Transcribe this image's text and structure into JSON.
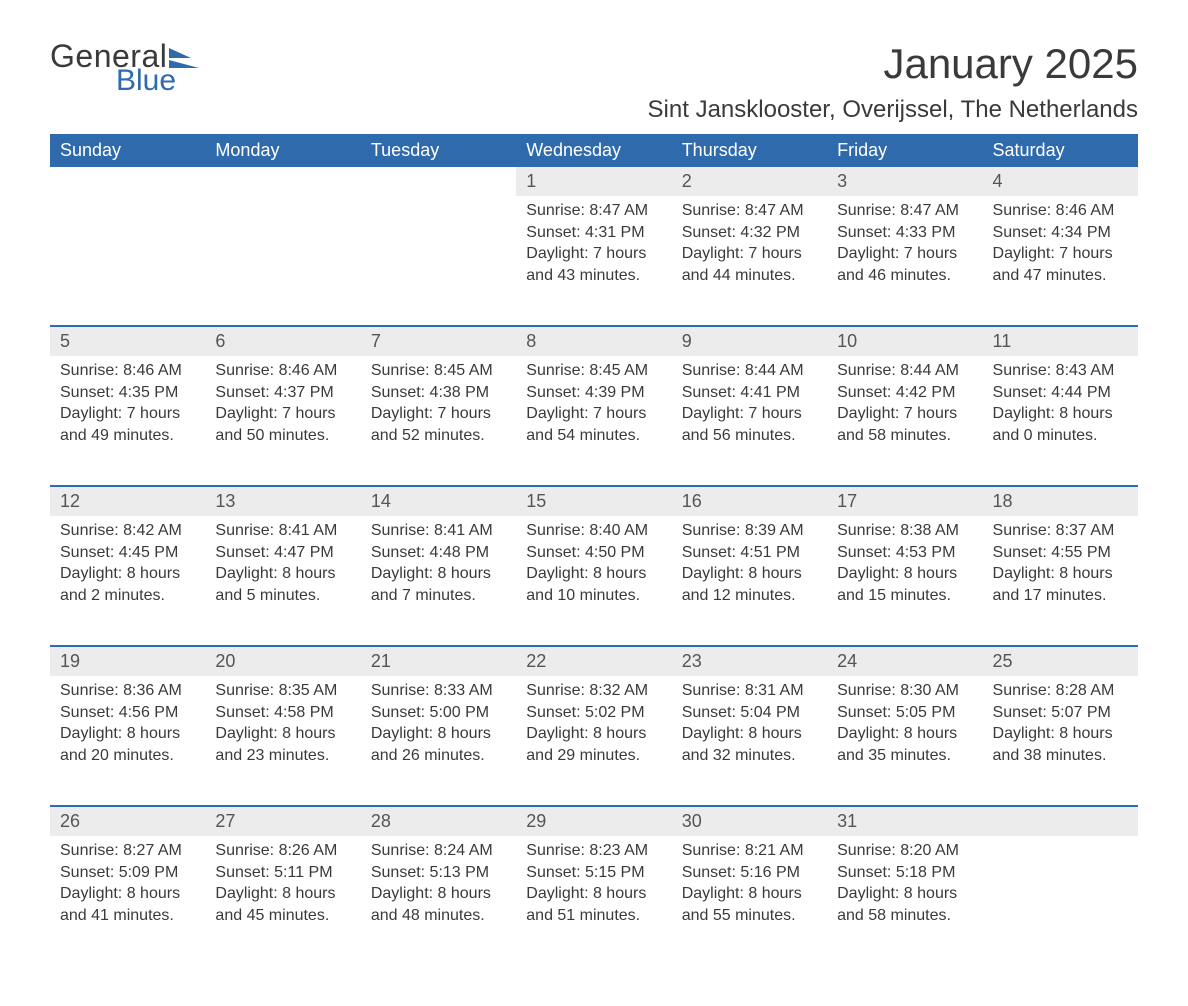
{
  "logo": {
    "word1": "General",
    "word2": "Blue",
    "accent_color": "#2f6aad"
  },
  "title": "January 2025",
  "location": "Sint Jansklooster, Overijssel, The Netherlands",
  "calendar": {
    "header_bg": "#2f6aad",
    "header_fg": "#ffffff",
    "daynum_bg": "#ececec",
    "rule_color": "#2f6aad",
    "text_color": "#3a3a3a",
    "background_color": "#ffffff",
    "header_fontsize": 18,
    "daynum_fontsize": 18,
    "body_fontsize": 16,
    "days": [
      "Sunday",
      "Monday",
      "Tuesday",
      "Wednesday",
      "Thursday",
      "Friday",
      "Saturday"
    ],
    "weeks": [
      [
        null,
        null,
        null,
        {
          "n": "1",
          "sunrise": "8:47 AM",
          "sunset": "4:31 PM",
          "dl1": "7 hours",
          "dl2": "and 43 minutes."
        },
        {
          "n": "2",
          "sunrise": "8:47 AM",
          "sunset": "4:32 PM",
          "dl1": "7 hours",
          "dl2": "and 44 minutes."
        },
        {
          "n": "3",
          "sunrise": "8:47 AM",
          "sunset": "4:33 PM",
          "dl1": "7 hours",
          "dl2": "and 46 minutes."
        },
        {
          "n": "4",
          "sunrise": "8:46 AM",
          "sunset": "4:34 PM",
          "dl1": "7 hours",
          "dl2": "and 47 minutes."
        }
      ],
      [
        {
          "n": "5",
          "sunrise": "8:46 AM",
          "sunset": "4:35 PM",
          "dl1": "7 hours",
          "dl2": "and 49 minutes."
        },
        {
          "n": "6",
          "sunrise": "8:46 AM",
          "sunset": "4:37 PM",
          "dl1": "7 hours",
          "dl2": "and 50 minutes."
        },
        {
          "n": "7",
          "sunrise": "8:45 AM",
          "sunset": "4:38 PM",
          "dl1": "7 hours",
          "dl2": "and 52 minutes."
        },
        {
          "n": "8",
          "sunrise": "8:45 AM",
          "sunset": "4:39 PM",
          "dl1": "7 hours",
          "dl2": "and 54 minutes."
        },
        {
          "n": "9",
          "sunrise": "8:44 AM",
          "sunset": "4:41 PM",
          "dl1": "7 hours",
          "dl2": "and 56 minutes."
        },
        {
          "n": "10",
          "sunrise": "8:44 AM",
          "sunset": "4:42 PM",
          "dl1": "7 hours",
          "dl2": "and 58 minutes."
        },
        {
          "n": "11",
          "sunrise": "8:43 AM",
          "sunset": "4:44 PM",
          "dl1": "8 hours",
          "dl2": "and 0 minutes."
        }
      ],
      [
        {
          "n": "12",
          "sunrise": "8:42 AM",
          "sunset": "4:45 PM",
          "dl1": "8 hours",
          "dl2": "and 2 minutes."
        },
        {
          "n": "13",
          "sunrise": "8:41 AM",
          "sunset": "4:47 PM",
          "dl1": "8 hours",
          "dl2": "and 5 minutes."
        },
        {
          "n": "14",
          "sunrise": "8:41 AM",
          "sunset": "4:48 PM",
          "dl1": "8 hours",
          "dl2": "and 7 minutes."
        },
        {
          "n": "15",
          "sunrise": "8:40 AM",
          "sunset": "4:50 PM",
          "dl1": "8 hours",
          "dl2": "and 10 minutes."
        },
        {
          "n": "16",
          "sunrise": "8:39 AM",
          "sunset": "4:51 PM",
          "dl1": "8 hours",
          "dl2": "and 12 minutes."
        },
        {
          "n": "17",
          "sunrise": "8:38 AM",
          "sunset": "4:53 PM",
          "dl1": "8 hours",
          "dl2": "and 15 minutes."
        },
        {
          "n": "18",
          "sunrise": "8:37 AM",
          "sunset": "4:55 PM",
          "dl1": "8 hours",
          "dl2": "and 17 minutes."
        }
      ],
      [
        {
          "n": "19",
          "sunrise": "8:36 AM",
          "sunset": "4:56 PM",
          "dl1": "8 hours",
          "dl2": "and 20 minutes."
        },
        {
          "n": "20",
          "sunrise": "8:35 AM",
          "sunset": "4:58 PM",
          "dl1": "8 hours",
          "dl2": "and 23 minutes."
        },
        {
          "n": "21",
          "sunrise": "8:33 AM",
          "sunset": "5:00 PM",
          "dl1": "8 hours",
          "dl2": "and 26 minutes."
        },
        {
          "n": "22",
          "sunrise": "8:32 AM",
          "sunset": "5:02 PM",
          "dl1": "8 hours",
          "dl2": "and 29 minutes."
        },
        {
          "n": "23",
          "sunrise": "8:31 AM",
          "sunset": "5:04 PM",
          "dl1": "8 hours",
          "dl2": "and 32 minutes."
        },
        {
          "n": "24",
          "sunrise": "8:30 AM",
          "sunset": "5:05 PM",
          "dl1": "8 hours",
          "dl2": "and 35 minutes."
        },
        {
          "n": "25",
          "sunrise": "8:28 AM",
          "sunset": "5:07 PM",
          "dl1": "8 hours",
          "dl2": "and 38 minutes."
        }
      ],
      [
        {
          "n": "26",
          "sunrise": "8:27 AM",
          "sunset": "5:09 PM",
          "dl1": "8 hours",
          "dl2": "and 41 minutes."
        },
        {
          "n": "27",
          "sunrise": "8:26 AM",
          "sunset": "5:11 PM",
          "dl1": "8 hours",
          "dl2": "and 45 minutes."
        },
        {
          "n": "28",
          "sunrise": "8:24 AM",
          "sunset": "5:13 PM",
          "dl1": "8 hours",
          "dl2": "and 48 minutes."
        },
        {
          "n": "29",
          "sunrise": "8:23 AM",
          "sunset": "5:15 PM",
          "dl1": "8 hours",
          "dl2": "and 51 minutes."
        },
        {
          "n": "30",
          "sunrise": "8:21 AM",
          "sunset": "5:16 PM",
          "dl1": "8 hours",
          "dl2": "and 55 minutes."
        },
        {
          "n": "31",
          "sunrise": "8:20 AM",
          "sunset": "5:18 PM",
          "dl1": "8 hours",
          "dl2": "and 58 minutes."
        },
        null
      ]
    ],
    "labels": {
      "sunrise": "Sunrise: ",
      "sunset": "Sunset: ",
      "daylight": "Daylight: "
    }
  }
}
